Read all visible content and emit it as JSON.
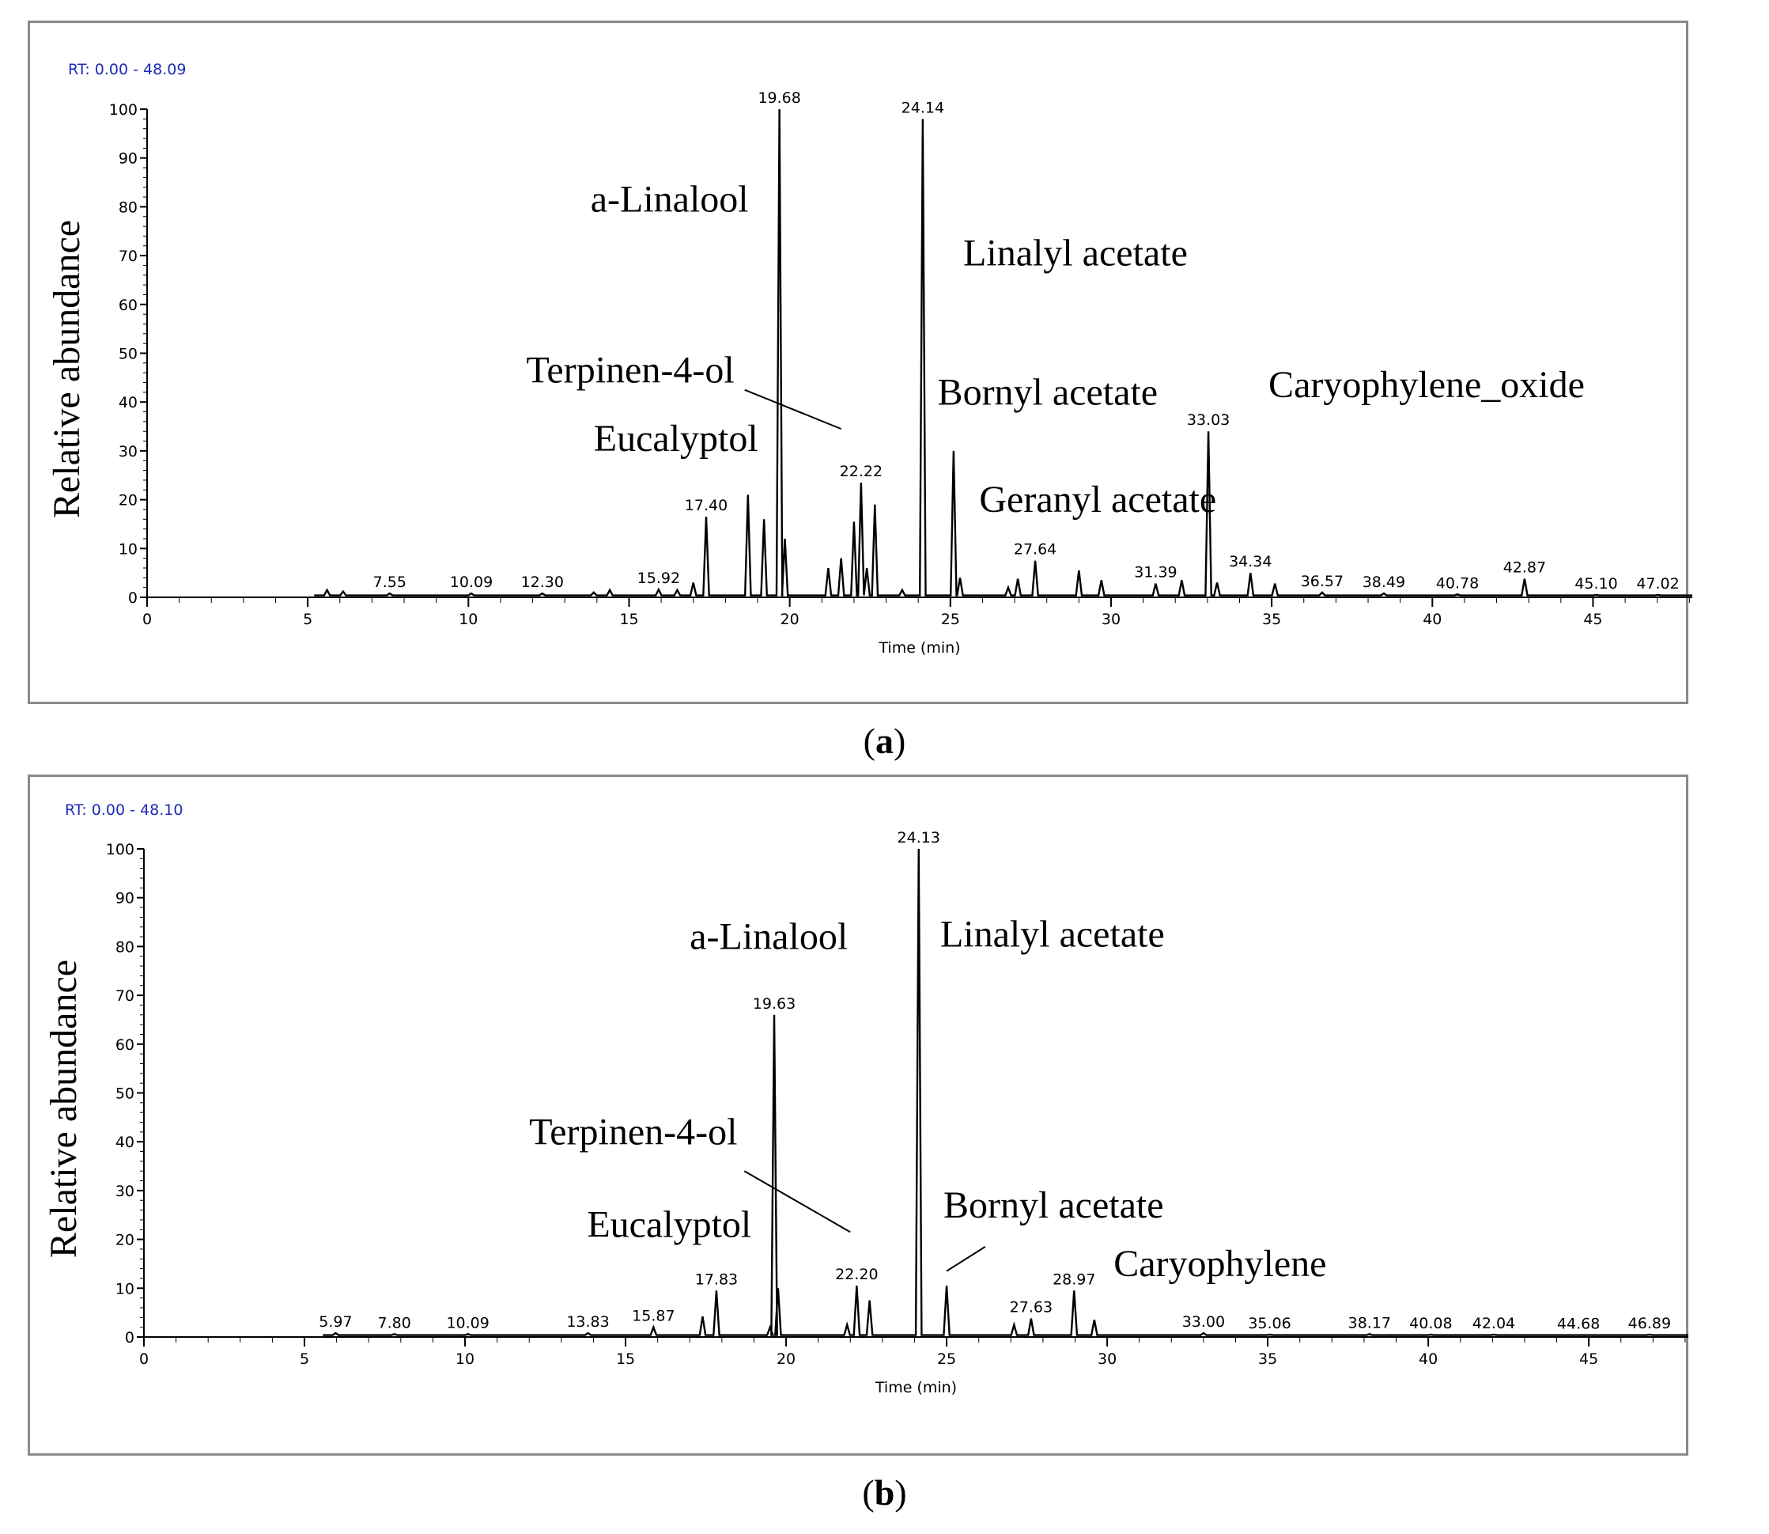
{
  "chart_data": [
    {
      "type": "line",
      "panel": "a",
      "caption_paren_open": "(",
      "caption_letter": "a",
      "caption_paren_close": ")",
      "rt_label": "RT: 0.00 - 48.09",
      "xlabel": "Time (min)",
      "ylabel": "Relative abundance",
      "xlim": [
        0,
        48.09
      ],
      "ylim": [
        0,
        100
      ],
      "xticks": [
        0,
        5,
        10,
        15,
        20,
        25,
        30,
        35,
        40,
        45
      ],
      "yticks": [
        0,
        10,
        20,
        30,
        40,
        50,
        60,
        70,
        80,
        90,
        100
      ],
      "peaks": [
        {
          "x": 5.6,
          "y": 1.5
        },
        {
          "x": 6.1,
          "y": 1.2
        },
        {
          "x": 7.55,
          "y": 0.8
        },
        {
          "x": 10.09,
          "y": 0.8
        },
        {
          "x": 12.3,
          "y": 0.8
        },
        {
          "x": 13.9,
          "y": 1.0
        },
        {
          "x": 14.4,
          "y": 1.5
        },
        {
          "x": 15.92,
          "y": 1.6
        },
        {
          "x": 16.5,
          "y": 1.5
        },
        {
          "x": 17.0,
          "y": 3.0
        },
        {
          "x": 17.4,
          "y": 16.5
        },
        {
          "x": 18.7,
          "y": 21
        },
        {
          "x": 19.2,
          "y": 16
        },
        {
          "x": 19.68,
          "y": 100
        },
        {
          "x": 19.85,
          "y": 12
        },
        {
          "x": 21.2,
          "y": 6
        },
        {
          "x": 21.6,
          "y": 8
        },
        {
          "x": 22.0,
          "y": 15.5
        },
        {
          "x": 22.22,
          "y": 23.5
        },
        {
          "x": 22.4,
          "y": 6
        },
        {
          "x": 22.65,
          "y": 19
        },
        {
          "x": 23.5,
          "y": 1.5
        },
        {
          "x": 24.14,
          "y": 98
        },
        {
          "x": 25.1,
          "y": 30
        },
        {
          "x": 25.3,
          "y": 4
        },
        {
          "x": 26.8,
          "y": 2
        },
        {
          "x": 27.1,
          "y": 3.8
        },
        {
          "x": 27.64,
          "y": 7.5
        },
        {
          "x": 29.0,
          "y": 5.5
        },
        {
          "x": 29.7,
          "y": 3.5
        },
        {
          "x": 31.39,
          "y": 2.8
        },
        {
          "x": 32.2,
          "y": 3.5
        },
        {
          "x": 33.03,
          "y": 34
        },
        {
          "x": 33.3,
          "y": 3
        },
        {
          "x": 34.34,
          "y": 5
        },
        {
          "x": 35.1,
          "y": 2.8
        },
        {
          "x": 36.57,
          "y": 1.0
        },
        {
          "x": 38.49,
          "y": 0.8
        },
        {
          "x": 40.78,
          "y": 0.6
        },
        {
          "x": 42.87,
          "y": 3.8
        },
        {
          "x": 45.1,
          "y": 0.5
        },
        {
          "x": 47.02,
          "y": 0.5
        }
      ],
      "peak_labels": [
        {
          "text": "7.55",
          "x": 7.55,
          "y": 0.8
        },
        {
          "text": "10.09",
          "x": 10.09,
          "y": 0.8
        },
        {
          "text": "12.30",
          "x": 12.3,
          "y": 0.8
        },
        {
          "text": "15.92",
          "x": 15.92,
          "y": 1.6
        },
        {
          "text": "17.40",
          "x": 17.4,
          "y": 16.5
        },
        {
          "text": "19.68",
          "x": 19.68,
          "y": 100
        },
        {
          "text": "22.22",
          "x": 22.22,
          "y": 23.5
        },
        {
          "text": "24.14",
          "x": 24.14,
          "y": 98
        },
        {
          "text": "27.64",
          "x": 27.64,
          "y": 7.5
        },
        {
          "text": "31.39",
          "x": 31.39,
          "y": 2.8
        },
        {
          "text": "33.03",
          "x": 33.03,
          "y": 34
        },
        {
          "text": "34.34",
          "x": 34.34,
          "y": 5
        },
        {
          "text": "36.57",
          "x": 36.57,
          "y": 1.0
        },
        {
          "text": "38.49",
          "x": 38.49,
          "y": 0.8
        },
        {
          "text": "40.78",
          "x": 40.78,
          "y": 0.6
        },
        {
          "text": "42.87",
          "x": 42.87,
          "y": 3.8
        },
        {
          "text": "45.10",
          "x": 45.1,
          "y": 0.5
        },
        {
          "text": "47.02",
          "x": 47.02,
          "y": 0.5
        }
      ],
      "annotations": [
        {
          "text": "a-Linalool",
          "x": 13.8,
          "y": 79
        },
        {
          "text": "Linalyl acetate",
          "x": 25.4,
          "y": 68
        },
        {
          "text": "Terpinen-4-ol",
          "x": 11.8,
          "y": 44
        },
        {
          "text": "Bornyl acetate",
          "x": 24.6,
          "y": 39.5
        },
        {
          "text": "Caryophylene_oxide",
          "x": 34.9,
          "y": 41
        },
        {
          "text": "Eucalyptol",
          "x": 13.9,
          "y": 30
        },
        {
          "text": "Geranyl acetate",
          "x": 25.9,
          "y": 17.5
        }
      ],
      "leader_line": {
        "x1": 18.6,
        "y1": 42.5,
        "x2": 21.6,
        "y2": 34.5
      }
    },
    {
      "type": "line",
      "panel": "b",
      "caption_paren_open": "(",
      "caption_letter": "b",
      "caption_paren_close": ")",
      "rt_label": "RT: 0.00 - 48.10",
      "xlabel": "Time (min)",
      "ylabel": "Relative abundance",
      "xlim": [
        0,
        48.1
      ],
      "ylim": [
        0,
        100
      ],
      "xticks": [
        0,
        5,
        10,
        15,
        20,
        25,
        30,
        35,
        40,
        45
      ],
      "yticks": [
        0,
        10,
        20,
        30,
        40,
        50,
        60,
        70,
        80,
        90,
        100
      ],
      "peaks": [
        {
          "x": 5.97,
          "y": 0.8
        },
        {
          "x": 7.8,
          "y": 0.6
        },
        {
          "x": 10.09,
          "y": 0.6
        },
        {
          "x": 13.83,
          "y": 0.8
        },
        {
          "x": 15.87,
          "y": 2.0
        },
        {
          "x": 17.4,
          "y": 4.2
        },
        {
          "x": 17.83,
          "y": 9.5
        },
        {
          "x": 19.5,
          "y": 2.0
        },
        {
          "x": 19.63,
          "y": 66
        },
        {
          "x": 19.75,
          "y": 10
        },
        {
          "x": 21.9,
          "y": 2.5
        },
        {
          "x": 22.2,
          "y": 10.5
        },
        {
          "x": 22.6,
          "y": 7.5
        },
        {
          "x": 24.13,
          "y": 100
        },
        {
          "x": 25.0,
          "y": 10.5
        },
        {
          "x": 27.1,
          "y": 2.5
        },
        {
          "x": 27.63,
          "y": 3.8
        },
        {
          "x": 28.97,
          "y": 9.5
        },
        {
          "x": 29.6,
          "y": 3.5
        },
        {
          "x": 33.0,
          "y": 0.8
        },
        {
          "x": 35.06,
          "y": 0.5
        },
        {
          "x": 38.17,
          "y": 0.6
        },
        {
          "x": 40.08,
          "y": 0.5
        },
        {
          "x": 42.04,
          "y": 0.5
        },
        {
          "x": 44.68,
          "y": 0.4
        },
        {
          "x": 46.89,
          "y": 0.5
        }
      ],
      "peak_labels": [
        {
          "text": "5.97",
          "x": 5.97,
          "y": 0.8
        },
        {
          "text": "7.80",
          "x": 7.8,
          "y": 0.6
        },
        {
          "text": "10.09",
          "x": 10.09,
          "y": 0.6
        },
        {
          "text": "13.83",
          "x": 13.83,
          "y": 0.8
        },
        {
          "text": "15.87",
          "x": 15.87,
          "y": 2.0
        },
        {
          "text": "17.83",
          "x": 17.83,
          "y": 9.5
        },
        {
          "text": "19.63",
          "x": 19.63,
          "y": 66
        },
        {
          "text": "22.20",
          "x": 22.2,
          "y": 10.5
        },
        {
          "text": "24.13",
          "x": 24.13,
          "y": 100
        },
        {
          "text": "27.63",
          "x": 27.63,
          "y": 3.8
        },
        {
          "text": "28.97",
          "x": 28.97,
          "y": 9.5
        },
        {
          "text": "33.00",
          "x": 33.0,
          "y": 0.8
        },
        {
          "text": "35.06",
          "x": 35.06,
          "y": 0.5
        },
        {
          "text": "38.17",
          "x": 38.17,
          "y": 0.6
        },
        {
          "text": "40.08",
          "x": 40.08,
          "y": 0.5
        },
        {
          "text": "42.04",
          "x": 42.04,
          "y": 0.5
        },
        {
          "text": "44.68",
          "x": 44.68,
          "y": 0.4
        },
        {
          "text": "46.89",
          "x": 46.89,
          "y": 0.5
        }
      ],
      "annotations": [
        {
          "text": "a-Linalool",
          "x": 17.0,
          "y": 79.5
        },
        {
          "text": "Linalyl acetate",
          "x": 24.8,
          "y": 80
        },
        {
          "text": "Terpinen-4-ol",
          "x": 12.0,
          "y": 39.5
        },
        {
          "text": "Eucalyptol",
          "x": 13.8,
          "y": 20.5
        },
        {
          "text": "Bornyl acetate",
          "x": 24.9,
          "y": 24.5
        },
        {
          "text": "Caryophylene",
          "x": 30.2,
          "y": 12.5
        }
      ],
      "leader_line": {
        "x1": 18.7,
        "y1": 34,
        "x2": 22.0,
        "y2": 21.5
      },
      "leader_line_2": {
        "x1": 26.2,
        "y1": 18.5,
        "x2": 25.0,
        "y2": 13.5
      }
    }
  ]
}
